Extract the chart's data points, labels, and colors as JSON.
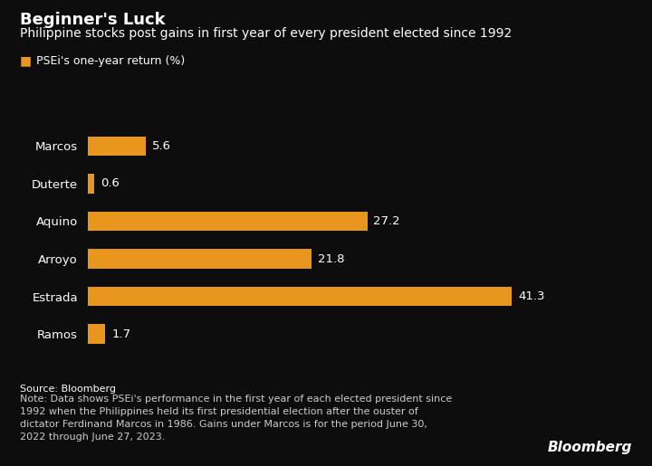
{
  "title": "Beginner's Luck",
  "subtitle": "Philippine stocks post gains in first year of every president elected since 1992",
  "legend_label": "PSEi's one-year return (%)",
  "categories": [
    "Marcos",
    "Duterte",
    "Aquino",
    "Arroyo",
    "Estrada",
    "Ramos"
  ],
  "values": [
    5.6,
    0.6,
    27.2,
    21.8,
    41.3,
    1.7
  ],
  "bar_color": "#E8961E",
  "background_color": "#0d0d0d",
  "text_color": "#FFFFFF",
  "note_color": "#CCCCCC",
  "source_text": "Source: Bloomberg",
  "note_text": "Note: Data shows PSEi's performance in the first year of each elected president since\n1992 when the Philippines held its first presidential election after the ouster of\ndictator Ferdinand Marcos in 1986. Gains under Marcos is for the period June 30,\n2022 through June 27, 2023.",
  "bloomberg_label": "Bloomberg",
  "xlim": [
    0,
    47
  ],
  "title_fontsize": 13,
  "subtitle_fontsize": 10,
  "label_fontsize": 9.5,
  "bar_label_fontsize": 9.5,
  "note_fontsize": 8,
  "legend_fontsize": 9
}
